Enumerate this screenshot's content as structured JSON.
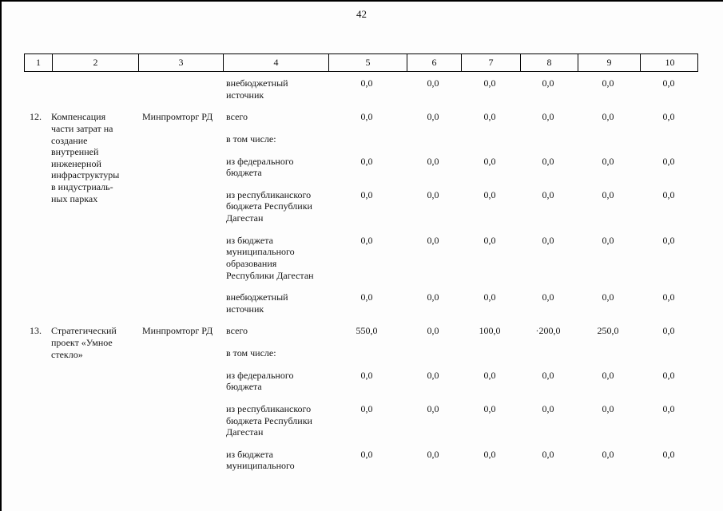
{
  "page_number": "42",
  "table": {
    "headers": [
      "1",
      "2",
      "3",
      "4",
      "5",
      "6",
      "7",
      "8",
      "9",
      "10"
    ],
    "blocks": [
      {
        "num": "",
        "name": "",
        "agency": "",
        "subrows": [
          {
            "label": "внебюджетный\nисточник",
            "values": [
              "0,0",
              "0,0",
              "0,0",
              "0,0",
              "0,0",
              "0,0"
            ]
          }
        ]
      },
      {
        "num": "12.",
        "name": "Компенсация\nчасти затрат на\nсоздание\nвнутренней\nинженерной\nинфраструктуры\nв индустриаль-\nных парках",
        "agency": "Минпромторг РД",
        "subrows": [
          {
            "label": "всего",
            "values": [
              "0,0",
              "0,0",
              "0,0",
              "0,0",
              "0,0",
              "0,0"
            ]
          },
          {
            "label": "в том числе:",
            "values": []
          },
          {
            "label": "из федерального\nбюджета",
            "values": [
              "0,0",
              "0,0",
              "0,0",
              "0,0",
              "0,0",
              "0,0"
            ]
          },
          {
            "label": "из республиканского\nбюджета Республики\nДагестан",
            "values": [
              "0,0",
              "0,0",
              "0,0",
              "0,0",
              "0,0",
              "0,0"
            ]
          },
          {
            "label": "из бюджета\nмуниципального\nобразования\nРеспублики Дагестан",
            "values": [
              "0,0",
              "0,0",
              "0,0",
              "0,0",
              "0,0",
              "0,0"
            ]
          },
          {
            "label": "внебюджетный\nисточник",
            "values": [
              "0,0",
              "0,0",
              "0,0",
              "0,0",
              "0,0",
              "0,0"
            ]
          }
        ]
      },
      {
        "num": "13.",
        "name": "Стратегический\nпроект «Умное\nстекло»",
        "agency": "Минпромторг РД",
        "subrows": [
          {
            "label": "всего",
            "values": [
              "550,0",
              "0,0",
              "100,0",
              "·200,0",
              "250,0",
              "0,0"
            ]
          },
          {
            "label": "в том числе:",
            "values": []
          },
          {
            "label": "из федерального\nбюджета",
            "values": [
              "0,0",
              "0,0",
              "0,0",
              "0,0",
              "0,0",
              "0,0"
            ]
          },
          {
            "label": "из республиканского\nбюджета Республики\nДагестан",
            "values": [
              "0,0",
              "0,0",
              "0,0",
              "0,0",
              "0,0",
              "0,0"
            ]
          },
          {
            "label": "из бюджета\nмуниципального",
            "values": [
              "0,0",
              "0,0",
              "0,0",
              "0,0",
              "0,0",
              "0,0"
            ]
          }
        ]
      }
    ]
  }
}
